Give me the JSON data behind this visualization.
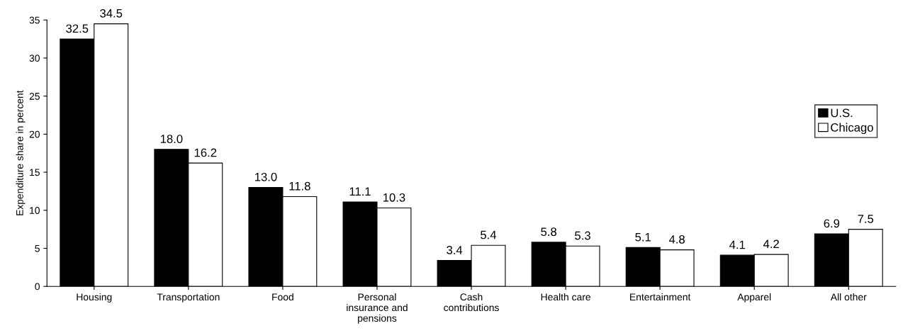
{
  "chart_data": {
    "type": "bar",
    "categories": [
      "Housing",
      "Transportation",
      "Food",
      "Personal\ninsurance and\npensions",
      "Cash\ncontributions",
      "Health care",
      "Entertainment",
      "Apparel",
      "All other"
    ],
    "series": [
      {
        "name": "U.S.",
        "color": "#000000",
        "values": [
          32.5,
          18.0,
          13.0,
          11.1,
          3.4,
          5.8,
          5.1,
          4.1,
          6.9
        ],
        "value_labels": [
          "32.5",
          "18.0",
          "13.0",
          "11.1",
          "3.4",
          "5.8",
          "5.1",
          "4.1",
          "6.9"
        ]
      },
      {
        "name": "Chicago",
        "color": "#ffffff",
        "values": [
          34.5,
          16.2,
          11.8,
          10.3,
          5.4,
          5.3,
          4.8,
          4.2,
          7.5
        ],
        "value_labels": [
          "34.5",
          "16.2",
          "11.8",
          "10.3",
          "5.4",
          "5.3",
          "4.8",
          "4.2",
          "7.5"
        ]
      }
    ],
    "ylabel": "Expenditure share in percent",
    "ylim": [
      0,
      35
    ],
    "yticks": [
      0,
      5,
      10,
      15,
      20,
      25,
      30,
      35
    ],
    "grid": false,
    "legend": "right"
  }
}
